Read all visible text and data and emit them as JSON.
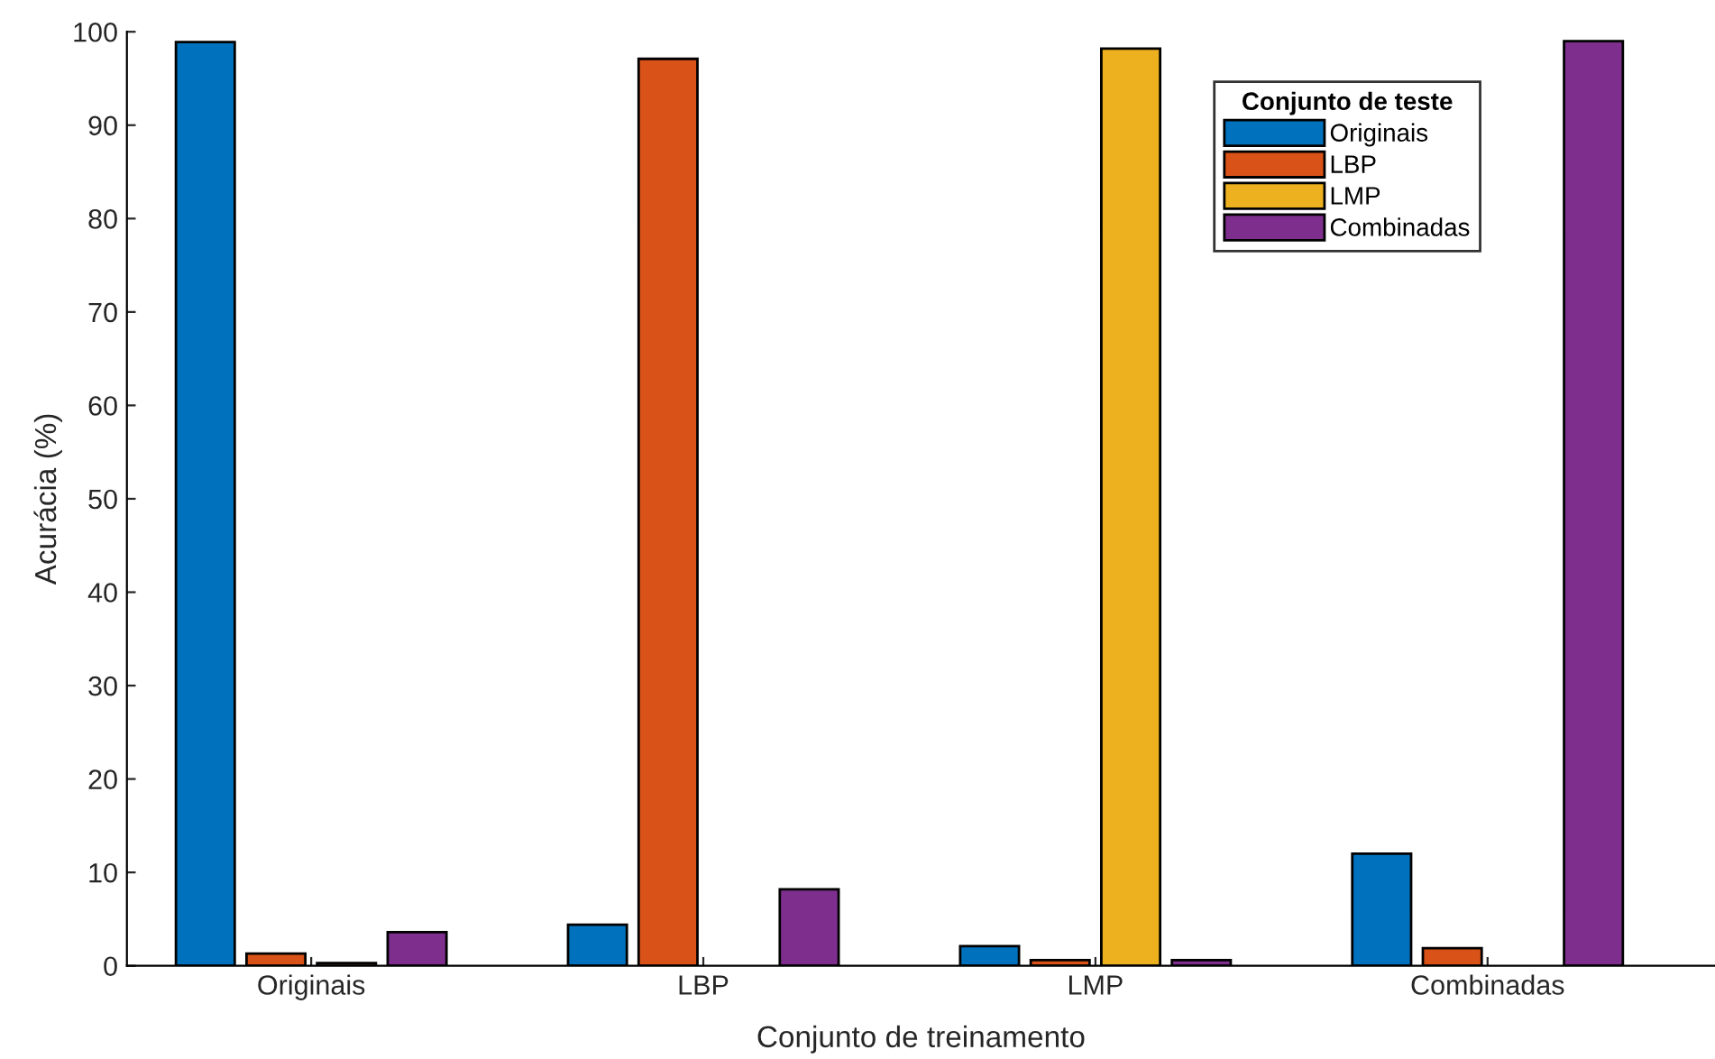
{
  "chart_data": {
    "type": "bar",
    "xlabel": "Conjunto de treinamento",
    "ylabel": "Acurácia (%)",
    "legend_title": "Conjunto de teste",
    "categories": [
      "Originais",
      "LBP",
      "LMP",
      "Combinadas"
    ],
    "series": [
      {
        "name": "Originais",
        "color": "#0072bd",
        "values": [
          98.9,
          4.4,
          2.1,
          12.0
        ]
      },
      {
        "name": "LBP",
        "color": "#d95319",
        "values": [
          1.3,
          97.1,
          0.6,
          1.9
        ]
      },
      {
        "name": "LMP",
        "color": "#edb120",
        "values": [
          0.3,
          null,
          98.2,
          null
        ]
      },
      {
        "name": "Combinadas",
        "color": "#7e2f8e",
        "values": [
          3.6,
          8.2,
          0.6,
          99.0
        ]
      }
    ],
    "ylim": [
      0,
      100
    ],
    "yticks": [
      0,
      10,
      20,
      30,
      40,
      50,
      60,
      70,
      80,
      90,
      100
    ],
    "grid": false,
    "legend": "top right"
  }
}
